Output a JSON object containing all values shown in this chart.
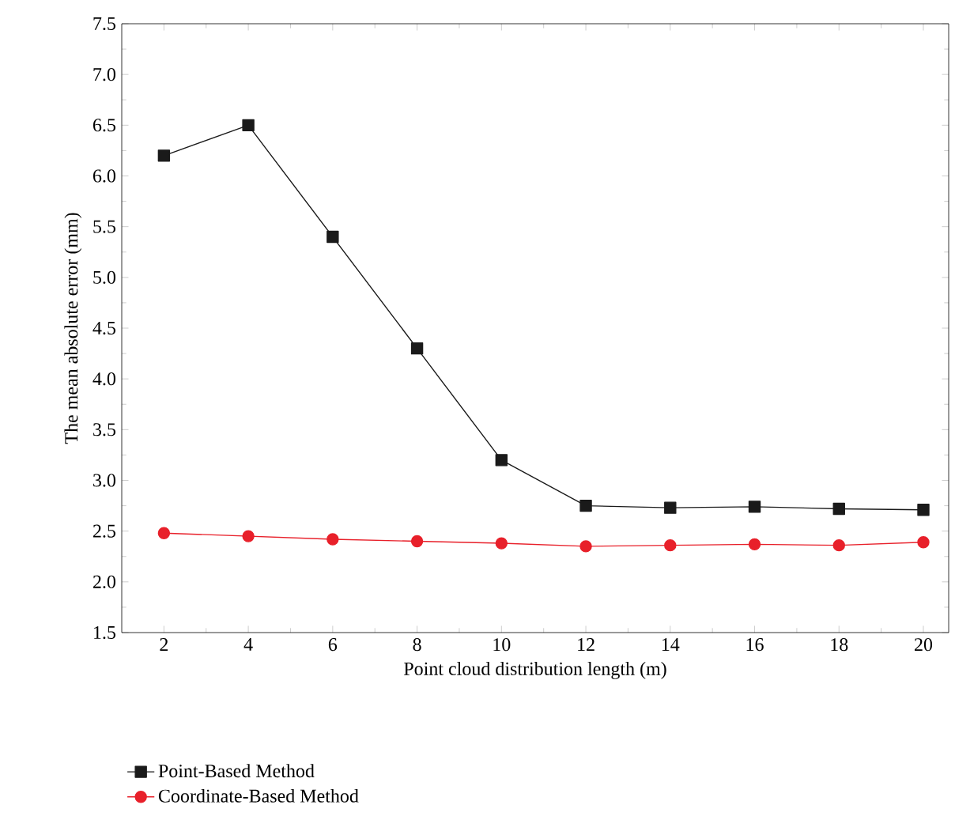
{
  "chart_data": {
    "type": "line",
    "xlabel": "Point cloud distribution length (m)",
    "ylabel": "The mean absolute error (mm)",
    "x": [
      2,
      4,
      6,
      8,
      10,
      12,
      14,
      16,
      18,
      20
    ],
    "series": [
      {
        "name": "Point-Based Method",
        "color": "#1a1a1a",
        "marker": "square",
        "values": [
          6.2,
          6.5,
          5.4,
          4.3,
          3.2,
          2.75,
          2.73,
          2.74,
          2.72,
          2.71
        ]
      },
      {
        "name": "Coordinate-Based Method",
        "color": "#e8202a",
        "marker": "circle",
        "values": [
          2.48,
          2.45,
          2.42,
          2.4,
          2.38,
          2.35,
          2.36,
          2.37,
          2.36,
          2.39
        ]
      }
    ],
    "xlim": [
      1,
      20.6
    ],
    "ylim": [
      1.5,
      7.5
    ],
    "xticks": [
      2,
      4,
      6,
      8,
      10,
      12,
      14,
      16,
      18,
      20
    ],
    "yticks": [
      {
        "value": 1.5,
        "label": "1.5"
      },
      {
        "value": 2,
        "label": "2.0"
      },
      {
        "value": 2.5,
        "label": "2.5"
      },
      {
        "value": 3,
        "label": "3.0"
      },
      {
        "value": 3.5,
        "label": "3.5"
      },
      {
        "value": 4,
        "label": "4.0"
      },
      {
        "value": 4.5,
        "label": "4.5"
      },
      {
        "value": 5,
        "label": "5.0"
      },
      {
        "value": 5.5,
        "label": "5.5"
      },
      {
        "value": 6,
        "label": "6.0"
      },
      {
        "value": 6.5,
        "label": "6.5"
      },
      {
        "value": 7,
        "label": "7.0"
      },
      {
        "value": 7.5,
        "label": "7.5"
      }
    ],
    "grid": false,
    "legend": "bottom",
    "line_style": "solid"
  }
}
